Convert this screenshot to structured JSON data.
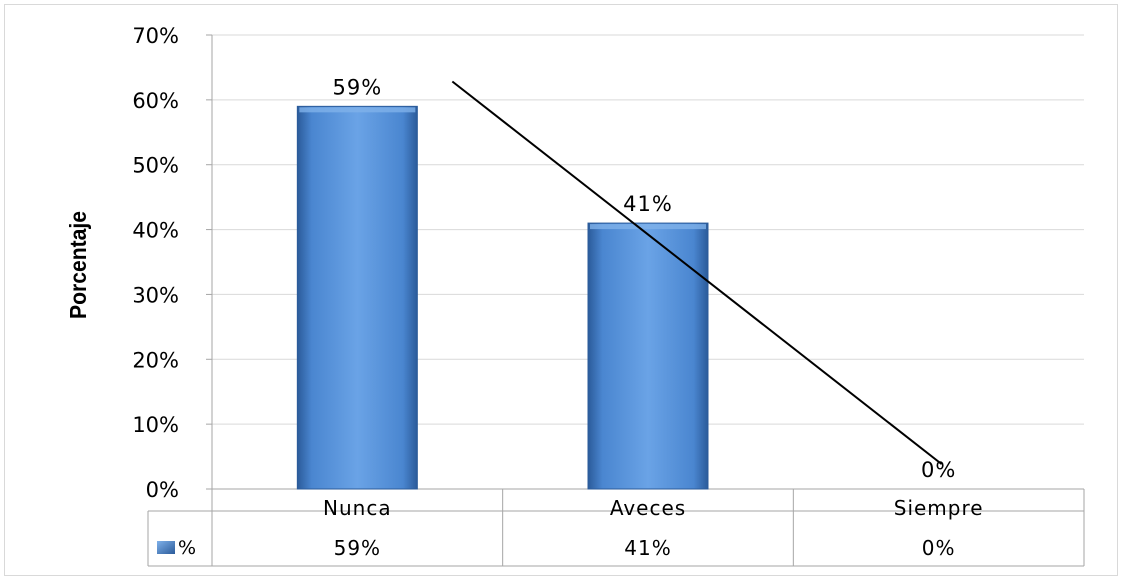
{
  "chart_data": {
    "type": "bar",
    "categories": [
      "Nunca",
      "Aveces",
      "Siempre"
    ],
    "series": [
      {
        "name": "%",
        "values": [
          59,
          41,
          0
        ]
      }
    ],
    "value_labels": [
      "59%",
      "41%",
      "0%"
    ],
    "ylabel": "Porcentaje",
    "ylim": [
      0,
      70
    ],
    "y_ticks": [
      "0%",
      "10%",
      "20%",
      "30%",
      "40%",
      "50%",
      "60%",
      "70%"
    ],
    "y_tick_values": [
      0,
      10,
      20,
      30,
      40,
      50,
      60,
      70
    ],
    "grid": true,
    "data_table": true,
    "trendline": true,
    "colors": {
      "bar": "#4a86d0",
      "bar_dark": "#2b5b9a",
      "bar_light": "#7fb1ea",
      "grid": "#d9d9d9",
      "axis": "#a6a6a6",
      "text": "#000000",
      "trendline": "#000000"
    }
  }
}
